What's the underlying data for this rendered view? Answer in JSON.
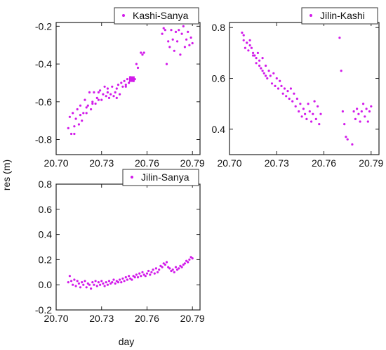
{
  "figure": {
    "xlabel": "day",
    "ylabel": "res (m)",
    "marker_color": "#d21bea"
  },
  "chart_data": [
    {
      "type": "scatter",
      "title": "",
      "legend": "Kashi-Sanya",
      "xlim": [
        20.7,
        20.795
      ],
      "ylim": [
        -0.88,
        -0.18
      ],
      "xticks": [
        "20.70",
        "20.73",
        "20.76",
        "20.79"
      ],
      "xtick_values": [
        20.7,
        20.73,
        20.76,
        20.79
      ],
      "yticks": [
        "-0.2",
        "-0.4",
        "-0.6",
        "-0.8"
      ],
      "ytick_values": [
        -0.2,
        -0.4,
        -0.6,
        -0.8
      ],
      "highlight_point": {
        "x": 20.75,
        "y": -0.48
      },
      "series": [
        {
          "name": "Kashi-Sanya",
          "x": [
            20.708,
            20.709,
            20.71,
            20.711,
            20.712,
            20.713,
            20.714,
            20.715,
            20.716,
            20.717,
            20.718,
            20.719,
            20.72,
            20.721,
            20.722,
            20.723,
            20.724,
            20.725,
            20.726,
            20.727,
            20.728,
            20.729,
            20.73,
            20.731,
            20.732,
            20.733,
            20.734,
            20.735,
            20.736,
            20.737,
            20.738,
            20.739,
            20.74,
            20.741,
            20.742,
            20.743,
            20.744,
            20.745,
            20.746,
            20.747,
            20.748,
            20.749,
            20.751,
            20.752,
            20.753,
            20.754,
            20.756,
            20.757,
            20.758,
            20.77,
            20.771,
            20.772,
            20.773,
            20.774,
            20.775,
            20.776,
            20.777,
            20.778,
            20.779,
            20.78,
            20.781,
            20.782,
            20.783,
            20.784,
            20.785,
            20.786,
            20.787,
            20.788,
            20.789,
            20.79,
            20.712,
            20.716,
            20.72,
            20.724,
            20.728,
            20.734,
            20.74,
            20.746
          ],
          "y": [
            -0.74,
            -0.68,
            -0.77,
            -0.66,
            -0.77,
            -0.69,
            -0.64,
            -0.72,
            -0.62,
            -0.7,
            -0.66,
            -0.59,
            -0.66,
            -0.62,
            -0.55,
            -0.64,
            -0.6,
            -0.55,
            -0.61,
            -0.58,
            -0.55,
            -0.54,
            -0.59,
            -0.56,
            -0.52,
            -0.57,
            -0.55,
            -0.58,
            -0.56,
            -0.52,
            -0.57,
            -0.55,
            -0.53,
            -0.51,
            -0.56,
            -0.5,
            -0.52,
            -0.49,
            -0.51,
            -0.48,
            -0.5,
            -0.47,
            -0.49,
            -0.48,
            -0.4,
            -0.42,
            -0.34,
            -0.35,
            -0.34,
            -0.24,
            -0.21,
            -0.22,
            -0.4,
            -0.28,
            -0.31,
            -0.22,
            -0.27,
            -0.33,
            -0.23,
            -0.28,
            -0.22,
            -0.35,
            -0.24,
            -0.2,
            -0.31,
            -0.27,
            -0.23,
            -0.3,
            -0.26,
            -0.29,
            -0.73,
            -0.67,
            -0.63,
            -0.61,
            -0.59,
            -0.53,
            -0.58,
            -0.52
          ]
        }
      ]
    },
    {
      "type": "scatter",
      "title": "",
      "legend": "Jilin-Kashi",
      "xlim": [
        20.7,
        20.795
      ],
      "ylim": [
        0.3,
        0.82
      ],
      "xticks": [
        "20.70",
        "20.73",
        "20.76",
        "20.79"
      ],
      "xtick_values": [
        20.7,
        20.73,
        20.76,
        20.79
      ],
      "yticks": [
        "0.8",
        "0.6",
        "0.4"
      ],
      "ytick_values": [
        0.8,
        0.6,
        0.4
      ],
      "series": [
        {
          "name": "Jilin-Kashi",
          "x": [
            20.708,
            20.709,
            20.71,
            20.711,
            20.712,
            20.713,
            20.714,
            20.715,
            20.716,
            20.717,
            20.718,
            20.719,
            20.72,
            20.721,
            20.722,
            20.723,
            20.724,
            20.725,
            20.726,
            20.727,
            20.728,
            20.729,
            20.73,
            20.731,
            20.732,
            20.733,
            20.734,
            20.735,
            20.736,
            20.737,
            20.738,
            20.739,
            20.74,
            20.741,
            20.742,
            20.743,
            20.744,
            20.745,
            20.746,
            20.747,
            20.748,
            20.749,
            20.75,
            20.751,
            20.752,
            20.753,
            20.754,
            20.755,
            20.756,
            20.757,
            20.758,
            20.77,
            20.771,
            20.772,
            20.773,
            20.774,
            20.775,
            20.778,
            20.779,
            20.78,
            20.781,
            20.782,
            20.783,
            20.784,
            20.785,
            20.786,
            20.787,
            20.788,
            20.789,
            20.79,
            20.709,
            20.711,
            20.713,
            20.715,
            20.717,
            20.719,
            20.721,
            20.723
          ],
          "y": [
            0.78,
            0.77,
            0.72,
            0.74,
            0.71,
            0.73,
            0.72,
            0.7,
            0.69,
            0.66,
            0.7,
            0.67,
            0.64,
            0.68,
            0.62,
            0.65,
            0.6,
            0.63,
            0.61,
            0.58,
            0.62,
            0.57,
            0.6,
            0.56,
            0.59,
            0.57,
            0.54,
            0.56,
            0.53,
            0.55,
            0.52,
            0.56,
            0.51,
            0.54,
            0.49,
            0.52,
            0.47,
            0.5,
            0.45,
            0.48,
            0.46,
            0.44,
            0.5,
            0.47,
            0.43,
            0.46,
            0.51,
            0.44,
            0.49,
            0.42,
            0.46,
            0.76,
            0.63,
            0.47,
            0.42,
            0.37,
            0.36,
            0.34,
            0.47,
            0.44,
            0.48,
            0.46,
            0.43,
            0.47,
            0.5,
            0.45,
            0.48,
            0.43,
            0.47,
            0.49,
            0.75,
            0.74,
            0.75,
            0.69,
            0.68,
            0.65,
            0.63,
            0.61
          ]
        }
      ]
    },
    {
      "type": "scatter",
      "title": "",
      "legend": "Jilin-Sanya",
      "xlim": [
        20.7,
        20.795
      ],
      "ylim": [
        -0.2,
        0.8
      ],
      "xticks": [
        "20.70",
        "20.73",
        "20.76",
        "20.79"
      ],
      "xtick_values": [
        20.7,
        20.73,
        20.76,
        20.79
      ],
      "yticks": [
        "0.8",
        "0.6",
        "0.4",
        "0.2",
        "0.0",
        "-0.2"
      ],
      "ytick_values": [
        0.8,
        0.6,
        0.4,
        0.2,
        0.0,
        -0.2
      ],
      "series": [
        {
          "name": "Jilin-Sanya",
          "x": [
            20.708,
            20.709,
            20.71,
            20.711,
            20.712,
            20.713,
            20.714,
            20.715,
            20.716,
            20.717,
            20.718,
            20.719,
            20.72,
            20.721,
            20.722,
            20.723,
            20.724,
            20.725,
            20.726,
            20.727,
            20.728,
            20.729,
            20.73,
            20.731,
            20.732,
            20.733,
            20.734,
            20.735,
            20.736,
            20.737,
            20.738,
            20.739,
            20.74,
            20.741,
            20.742,
            20.743,
            20.744,
            20.745,
            20.746,
            20.747,
            20.748,
            20.749,
            20.75,
            20.751,
            20.752,
            20.753,
            20.754,
            20.755,
            20.756,
            20.757,
            20.758,
            20.759,
            20.76,
            20.761,
            20.762,
            20.763,
            20.764,
            20.765,
            20.766,
            20.767,
            20.768,
            20.769,
            20.77,
            20.771,
            20.772,
            20.773,
            20.774,
            20.775,
            20.776,
            20.777,
            20.778,
            20.779,
            20.78,
            20.781,
            20.782,
            20.783,
            20.784,
            20.785,
            20.786,
            20.787,
            20.788,
            20.789,
            20.79
          ],
          "y": [
            0.02,
            0.07,
            0.03,
            0.0,
            0.04,
            -0.01,
            0.03,
            0.01,
            -0.02,
            0.02,
            0.0,
            0.03,
            -0.02,
            0.01,
            0.0,
            -0.03,
            0.02,
            0.0,
            0.03,
            -0.01,
            0.02,
            0.0,
            0.03,
            0.01,
            -0.01,
            0.02,
            0.0,
            0.03,
            0.01,
            0.02,
            0.04,
            0.01,
            0.03,
            0.02,
            0.04,
            0.02,
            0.05,
            0.03,
            0.06,
            0.04,
            0.07,
            0.05,
            0.04,
            0.07,
            0.06,
            0.08,
            0.06,
            0.09,
            0.07,
            0.1,
            0.08,
            0.07,
            0.09,
            0.11,
            0.08,
            0.1,
            0.12,
            0.09,
            0.13,
            0.1,
            0.12,
            0.15,
            0.14,
            0.17,
            0.16,
            0.18,
            0.14,
            0.13,
            0.11,
            0.12,
            0.1,
            0.14,
            0.12,
            0.13,
            0.15,
            0.14,
            0.16,
            0.17,
            0.19,
            0.18,
            0.2,
            0.22,
            0.21
          ]
        }
      ]
    }
  ]
}
